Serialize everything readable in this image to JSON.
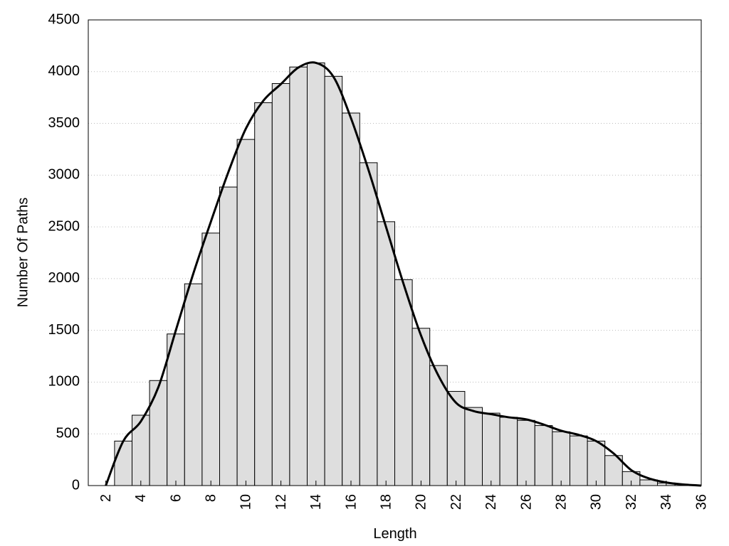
{
  "chart_data": {
    "type": "histogram",
    "xlabel": "Length",
    "ylabel": "Number Of Paths",
    "bins": [
      2.5,
      3.5,
      4.5,
      5.5,
      6.5,
      7.5,
      8.5,
      9.5,
      10.5,
      11.5,
      12.5,
      13.5,
      14.5,
      15.5,
      16.5,
      17.5,
      18.5,
      19.5,
      20.5,
      21.5,
      22.5,
      23.5,
      24.5,
      25.5,
      26.5,
      27.5,
      28.5,
      29.5,
      30.5,
      31.5,
      32.5,
      33.5,
      34.5,
      35.5
    ],
    "values": [
      430,
      680,
      1015,
      1465,
      1950,
      2440,
      2885,
      3345,
      3700,
      3885,
      4045,
      4085,
      3955,
      3600,
      3120,
      2550,
      1990,
      1520,
      1160,
      910,
      755,
      700,
      660,
      630,
      580,
      520,
      480,
      430,
      290,
      135,
      55,
      25,
      10
    ],
    "color": "#dedede",
    "curve": {
      "color": "#000000",
      "x": [
        2,
        3,
        4,
        5,
        6,
        7,
        8,
        9,
        10,
        11,
        12,
        13,
        14,
        15,
        16,
        17,
        18,
        19,
        20,
        21,
        22,
        23,
        24,
        25,
        26,
        27,
        28,
        29,
        30,
        31,
        32,
        33,
        34,
        35,
        36
      ],
      "values": [
        0,
        430,
        620,
        950,
        1500,
        2050,
        2550,
        3030,
        3450,
        3720,
        3880,
        4040,
        4085,
        3950,
        3550,
        3050,
        2500,
        1950,
        1450,
        1060,
        800,
        720,
        690,
        660,
        640,
        590,
        530,
        490,
        430,
        310,
        150,
        70,
        30,
        10,
        0
      ]
    },
    "xlim": [
      1,
      36
    ],
    "ylim": [
      0,
      4500
    ],
    "xticks": [
      2,
      4,
      6,
      8,
      10,
      12,
      14,
      16,
      18,
      20,
      22,
      24,
      26,
      28,
      30,
      32,
      34,
      36
    ],
    "yticks": [
      0,
      500,
      1000,
      1500,
      2000,
      2500,
      3000,
      3500,
      4000,
      4500
    ],
    "grid": true
  }
}
